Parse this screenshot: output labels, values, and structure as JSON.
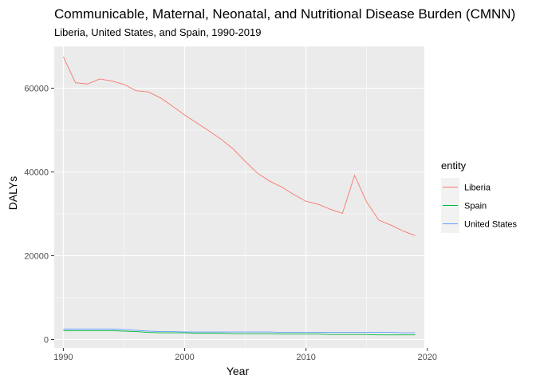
{
  "chart_data": {
    "type": "line",
    "title": "Communicable, Maternal, Neonatal, and Nutritional Disease Burden (CMNN)",
    "subtitle": "Liberia, United States, and Spain, 1990-2019",
    "xlabel": "Year",
    "ylabel": "DALYs",
    "xlim": [
      1989.25,
      2019.75
    ],
    "ylim": [
      -2000,
      70000
    ],
    "x_ticks": [
      1990,
      2000,
      2010,
      2020
    ],
    "y_ticks": [
      0,
      20000,
      40000,
      60000
    ],
    "x_tick_labels": [
      "1990",
      "2000",
      "2010",
      "2020"
    ],
    "y_tick_labels": [
      "0",
      "20000",
      "40000",
      "60000"
    ],
    "grid": true,
    "legend": {
      "title": "entity",
      "position": "right"
    },
    "x": [
      1990,
      1991,
      1992,
      1993,
      1994,
      1995,
      1996,
      1997,
      1998,
      1999,
      2000,
      2001,
      2002,
      2003,
      2004,
      2005,
      2006,
      2007,
      2008,
      2009,
      2010,
      2011,
      2012,
      2013,
      2014,
      2015,
      2016,
      2017,
      2018,
      2019
    ],
    "series": [
      {
        "name": "Liberia",
        "color": "#F8766D",
        "values": [
          67500,
          61300,
          61000,
          62200,
          61700,
          60900,
          59400,
          59100,
          57700,
          55700,
          53600,
          51700,
          49800,
          47800,
          45500,
          42500,
          39700,
          37800,
          36400,
          34600,
          33000,
          32300,
          31100,
          30100,
          39200,
          32800,
          28500,
          27300,
          25900,
          24800
        ]
      },
      {
        "name": "Spain",
        "color": "#00BA38",
        "values": [
          2100,
          2100,
          2100,
          2100,
          2100,
          2000,
          1900,
          1700,
          1600,
          1600,
          1600,
          1500,
          1500,
          1500,
          1400,
          1400,
          1400,
          1400,
          1300,
          1300,
          1300,
          1300,
          1200,
          1200,
          1200,
          1200,
          1100,
          1100,
          1100,
          1100
        ]
      },
      {
        "name": "United States",
        "color": "#619CFF",
        "values": [
          2500,
          2500,
          2500,
          2500,
          2500,
          2400,
          2200,
          2000,
          1900,
          1900,
          1800,
          1800,
          1800,
          1800,
          1800,
          1800,
          1800,
          1800,
          1700,
          1700,
          1700,
          1700,
          1700,
          1700,
          1700,
          1700,
          1700,
          1700,
          1600,
          1600
        ]
      }
    ]
  }
}
